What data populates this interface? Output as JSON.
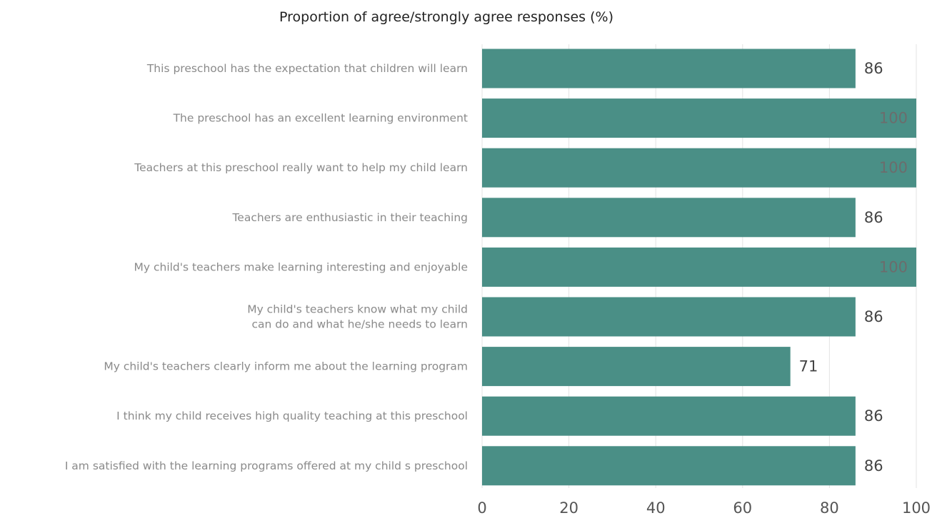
{
  "chart_data": {
    "type": "bar",
    "orientation": "horizontal",
    "title": "Proportion of agree/strongly agree responses (%)",
    "xlabel": "",
    "ylabel": "",
    "xlim": [
      0,
      100
    ],
    "x_ticks": [
      0,
      20,
      40,
      60,
      80,
      100
    ],
    "grid": true,
    "categories": [
      [
        "This preschool has the expectation that children will learn"
      ],
      [
        "The preschool has an excellent learning environment"
      ],
      [
        "Teachers at this preschool really want to help my child learn"
      ],
      [
        "Teachers are enthusiastic in their teaching"
      ],
      [
        "My child's teachers make learning interesting and enjoyable"
      ],
      [
        "My child's teachers know what my child",
        "can do and what he/she needs to learn"
      ],
      [
        "My child's teachers clearly inform me about the learning program"
      ],
      [
        "I think my child receives high quality teaching at this preschool"
      ],
      [
        "I am satisfied with the learning programs offered at my child s preschool"
      ]
    ],
    "values": [
      86,
      100,
      100,
      86,
      100,
      86,
      71,
      86,
      86
    ],
    "bar_color": "#4a8f86"
  }
}
